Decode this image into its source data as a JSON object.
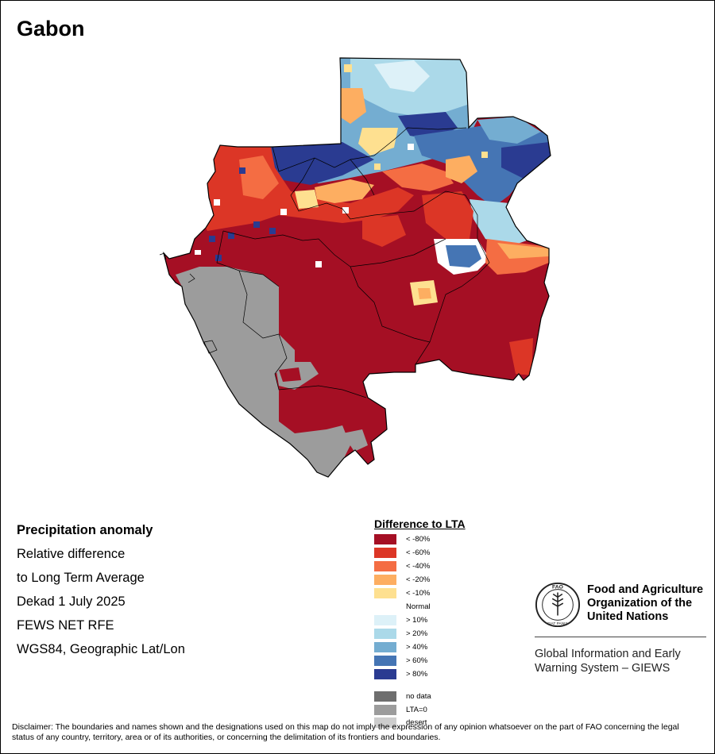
{
  "title": "Gabon",
  "info": {
    "heading": "Precipitation anomaly",
    "line1": "Relative difference",
    "line2": "to Long Term Average",
    "line3": "Dekad 1 July 2025",
    "line4": "FEWS NET RFE",
    "line5": "WGS84, Geographic Lat/Lon"
  },
  "legend": {
    "title": "Difference to LTA",
    "classes": [
      {
        "label": "< -80%",
        "color": "#a50f24"
      },
      {
        "label": "< -60%",
        "color": "#dc3626"
      },
      {
        "label": "< -40%",
        "color": "#f46d43"
      },
      {
        "label": "< -20%",
        "color": "#fdae61"
      },
      {
        "label": "< -10%",
        "color": "#fee090"
      },
      {
        "label": "Normal",
        "color": "#ffffff"
      },
      {
        "label": "> 10%",
        "color": "#ddf1f8"
      },
      {
        "label": "> 20%",
        "color": "#abd9e9"
      },
      {
        "label": "> 40%",
        "color": "#74add1"
      },
      {
        "label": "> 60%",
        "color": "#4575b4"
      },
      {
        "label": "> 80%",
        "color": "#2a3b91"
      }
    ],
    "special": [
      {
        "label": "no data",
        "color": "#6e6e6e"
      },
      {
        "label": "LTA=0",
        "color": "#9c9c9c"
      },
      {
        "label": "desert",
        "color": "#cdcdcd"
      }
    ]
  },
  "fao": {
    "name_line1": "Food and Agriculture",
    "name_line2": "Organization of the",
    "name_line3": "United Nations",
    "logo_text": "FAO",
    "motto": "FIAT PANIS",
    "giews_line1": "Global Information and Early",
    "giews_line2": "Warning System – GIEWS"
  },
  "disclaimer": "Disclaimer: The boundaries and names shown and the designations used on this map do not imply the expression of any opinion whatsoever on the part of FAO concerning the legal status of any country, territory, area or of its authorities, or concerning the delimitation of its frontiers and boundaries."
}
